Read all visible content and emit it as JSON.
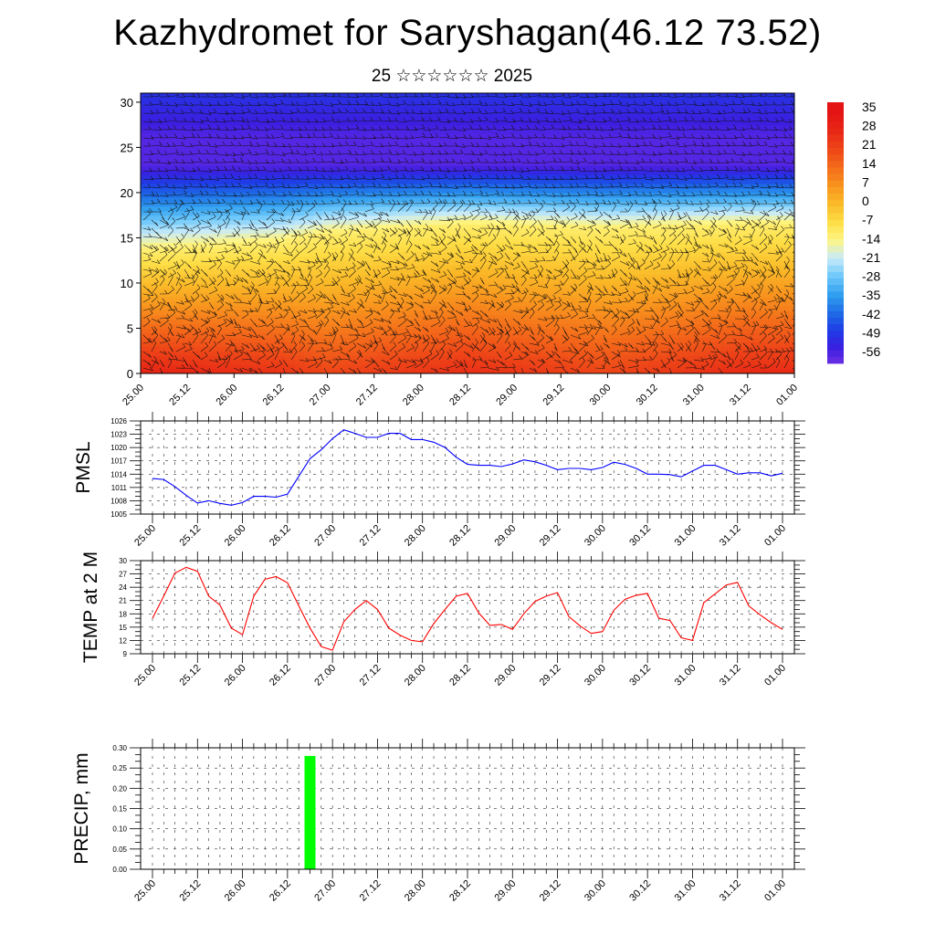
{
  "title": "Kazhydromet for Saryshagan(46.12 73.52)",
  "subtitle": "25 ☆☆☆☆☆☆ 2025",
  "colors": {
    "pmsl_line": "#0000ff",
    "temp_line": "#ff0000",
    "precip_bar": "#00ff00"
  },
  "chart_data": [
    {
      "type": "heatmap",
      "name": "cross-section",
      "ylim": [
        0,
        31
      ],
      "yticks": [
        0,
        5,
        10,
        15,
        20,
        25,
        30
      ],
      "xticks": [
        "25.00",
        "25.12",
        "26.00",
        "26.12",
        "27.00",
        "27.12",
        "28.00",
        "28.12",
        "29.00",
        "29.12",
        "30.00",
        "30.12",
        "31.00",
        "31.12",
        "01.00"
      ],
      "colorbar_levels": [
        "35",
        "28",
        "21",
        "14",
        "7",
        "0",
        "-7",
        "-14",
        "-21",
        "-28",
        "-35",
        "-42",
        "-49",
        "-56"
      ],
      "overlay": "wind barbs",
      "approx_profile_by_day": [
        {
          "x": "25.00",
          "t0": 30,
          "freeze_level": 13.5
        },
        {
          "x": "26.12",
          "t0": 26,
          "freeze_level": 14.5
        },
        {
          "x": "27.00",
          "t0": 22,
          "freeze_level": 15.5
        },
        {
          "x": "28.12",
          "t0": 27,
          "freeze_level": 16.5
        },
        {
          "x": "30.00",
          "t0": 22,
          "freeze_level": 16.0
        },
        {
          "x": "31.12",
          "t0": 28,
          "freeze_level": 16.5
        }
      ]
    },
    {
      "type": "line",
      "ylabel": "PMSL",
      "ylim": [
        1005,
        1026
      ],
      "yticks": [
        "1005",
        "1008",
        "1011",
        "1014",
        "1017",
        "1020",
        "1023",
        "1026"
      ],
      "xticks": [
        "25.00",
        "25.12",
        "26.00",
        "26.12",
        "27.00",
        "27.12",
        "28.00",
        "28.12",
        "29.00",
        "29.12",
        "30.00",
        "30.12",
        "31.00",
        "31.12",
        "01.00"
      ],
      "x": [
        0,
        3,
        6,
        9,
        12,
        15,
        18,
        21,
        24,
        27,
        30,
        33,
        36,
        39,
        42,
        45,
        48,
        51,
        54,
        57,
        60,
        63,
        66,
        69,
        72,
        75,
        78,
        81,
        84,
        87,
        90,
        93,
        96,
        99,
        102,
        105,
        108,
        111,
        114,
        117,
        120,
        123,
        126,
        129,
        132,
        135,
        138,
        141,
        144,
        147,
        150,
        153,
        156,
        159,
        162,
        165,
        168
      ],
      "values": [
        1013,
        1012.8,
        1011.2,
        1009.2,
        1007.5,
        1008,
        1007.4,
        1007,
        1007.6,
        1009,
        1009,
        1008.8,
        1009.5,
        1013.5,
        1017.5,
        1019.5,
        1022,
        1024,
        1023.2,
        1022.3,
        1022.3,
        1023.2,
        1023.2,
        1021.8,
        1021.8,
        1021.2,
        1020,
        1017.8,
        1016.2,
        1016,
        1016,
        1015.7,
        1016.3,
        1017.2,
        1016.8,
        1016,
        1015,
        1015.3,
        1015.3,
        1015,
        1015.5,
        1016.7,
        1016.2,
        1015.3,
        1014,
        1014,
        1013.9,
        1013.4,
        1014.7,
        1016,
        1016,
        1015,
        1014,
        1014.3,
        1014.3,
        1013.6,
        1014.2
      ]
    },
    {
      "type": "line",
      "ylabel": "TEMP at 2 M",
      "ylim": [
        9,
        30
      ],
      "yticks": [
        "9",
        "12",
        "15",
        "18",
        "21",
        "24",
        "27",
        "30"
      ],
      "xticks": [
        "25.00",
        "25.12",
        "26.00",
        "26.12",
        "27.00",
        "27.12",
        "28.00",
        "28.12",
        "29.00",
        "29.12",
        "30.00",
        "30.12",
        "31.00",
        "31.12",
        "01.00"
      ],
      "x": [
        0,
        3,
        6,
        9,
        12,
        15,
        18,
        21,
        24,
        27,
        30,
        33,
        36,
        39,
        42,
        45,
        48,
        51,
        54,
        57,
        60,
        63,
        66,
        69,
        72,
        75,
        78,
        81,
        84,
        87,
        90,
        93,
        96,
        99,
        102,
        105,
        108,
        111,
        114,
        117,
        120,
        123,
        126,
        129,
        132,
        135,
        138,
        141,
        144,
        147,
        150,
        153,
        156,
        159,
        162,
        165,
        168
      ],
      "values": [
        17,
        22,
        27.2,
        28.5,
        27.6,
        22,
        20,
        14.8,
        13.3,
        22,
        25.8,
        26.4,
        25,
        19.8,
        14.8,
        10.6,
        9.8,
        16.2,
        19,
        21,
        19,
        14.8,
        13.2,
        12,
        11.7,
        15.8,
        19,
        22,
        22.6,
        18.2,
        15.4,
        15.6,
        14.5,
        18,
        20.8,
        22,
        22.8,
        17.4,
        15.3,
        13.6,
        14,
        18.8,
        21.3,
        22.2,
        22.6,
        17,
        16.5,
        12.6,
        12,
        20.5,
        22.5,
        24.5,
        25.1,
        19.8,
        17.8,
        16,
        14.5
      ]
    },
    {
      "type": "bar",
      "ylabel": "PRECIP, mm",
      "ylim": [
        0,
        0.3
      ],
      "yticks": [
        "0.00",
        "0.05",
        "0.10",
        "0.15",
        "0.20",
        "0.25",
        "0.30"
      ],
      "xticks": [
        "25.00",
        "25.12",
        "26.00",
        "26.12",
        "27.00",
        "27.12",
        "28.00",
        "28.12",
        "29.00",
        "29.12",
        "30.00",
        "30.12",
        "31.00",
        "31.12",
        "01.00"
      ],
      "x": [
        42
      ],
      "values": [
        0.28
      ]
    }
  ]
}
